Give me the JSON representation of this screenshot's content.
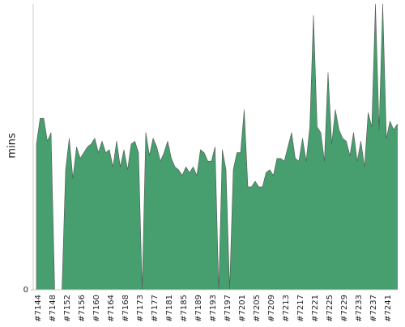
{
  "chart_data": {
    "type": "area",
    "y_label": "mins",
    "categories": [
      "#7144",
      null,
      null,
      null,
      "#7148",
      null,
      null,
      null,
      "#7152",
      null,
      null,
      null,
      "#7156",
      null,
      null,
      null,
      "#7160",
      null,
      null,
      null,
      "#7164",
      null,
      null,
      null,
      "#7168",
      null,
      null,
      null,
      "#7173",
      null,
      null,
      null,
      "#7177",
      null,
      null,
      null,
      "#7181",
      null,
      null,
      null,
      "#7185",
      null,
      null,
      null,
      "#7189",
      null,
      null,
      null,
      "#7193",
      null,
      null,
      null,
      "#7197",
      null,
      null,
      null,
      "#7201",
      null,
      null,
      null,
      "#7205",
      null,
      null,
      null,
      "#7209",
      null,
      null,
      null,
      "#7213",
      null,
      null,
      null,
      "#7217",
      null,
      null,
      null,
      "#7221",
      null,
      null,
      null,
      "#7225",
      null,
      null,
      null,
      "#7229",
      null,
      null,
      null,
      "#7233",
      null,
      null,
      null,
      "#7237",
      null,
      null,
      null,
      "#7241",
      null,
      null,
      null
    ],
    "values": [
      51,
      60,
      60,
      52,
      55,
      0,
      0,
      0,
      42,
      53,
      39,
      50,
      46,
      48,
      50,
      51,
      53,
      48,
      52,
      48,
      49,
      43,
      52,
      43,
      49,
      42,
      51,
      52,
      48,
      0,
      55,
      47,
      53,
      50,
      45,
      48,
      52,
      46,
      43,
      42,
      40,
      43,
      41,
      43,
      40,
      49,
      48,
      45,
      45,
      50,
      0,
      49,
      42,
      0,
      42,
      48,
      48,
      63,
      36,
      36,
      38,
      36,
      36,
      41,
      42,
      40,
      46,
      46,
      45,
      50,
      55,
      46,
      45,
      53,
      45,
      57,
      96,
      57,
      55,
      45,
      76,
      51,
      63,
      56,
      53,
      52,
      47,
      55,
      45,
      52,
      43,
      62,
      57,
      100,
      56,
      100,
      53,
      59,
      56,
      58
    ],
    "color": "#479e6e",
    "ylim": [
      0,
      100
    ],
    "yticks": [
      0
    ]
  }
}
